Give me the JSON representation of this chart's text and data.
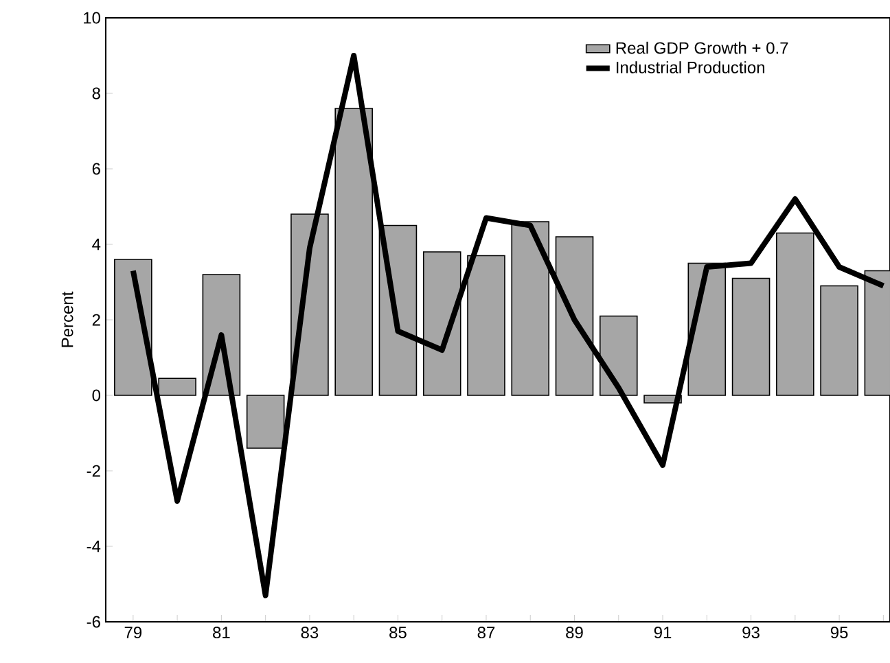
{
  "chart_data": {
    "type": "bar",
    "ylabel": "Percent",
    "categories": [
      "79",
      null,
      "81",
      null,
      "83",
      null,
      "85",
      null,
      "87",
      null,
      "89",
      null,
      "91",
      null,
      "93",
      null,
      "95",
      null
    ],
    "series": [
      {
        "name": "Real GDP Growth + 0.7",
        "color": "#a6a6a6",
        "values": [
          3.6,
          0.45,
          3.2,
          -1.4,
          4.8,
          7.6,
          4.5,
          3.8,
          3.7,
          4.6,
          4.2,
          2.1,
          -0.2,
          3.5,
          3.1,
          4.3,
          2.9,
          3.3
        ]
      },
      {
        "name": "Industrial Production",
        "type": "line",
        "color": "#000000",
        "values": [
          3.3,
          -2.8,
          1.6,
          -5.3,
          3.9,
          9.0,
          1.7,
          1.2,
          4.7,
          4.5,
          2.0,
          0.2,
          -1.85,
          3.4,
          3.5,
          5.2,
          3.4,
          2.9
        ]
      }
    ],
    "ylim": [
      -6,
      10
    ],
    "yticks": [
      -6,
      -4,
      -2,
      0,
      2,
      4,
      6,
      8,
      10
    ],
    "legend": "top right",
    "grid": false
  }
}
